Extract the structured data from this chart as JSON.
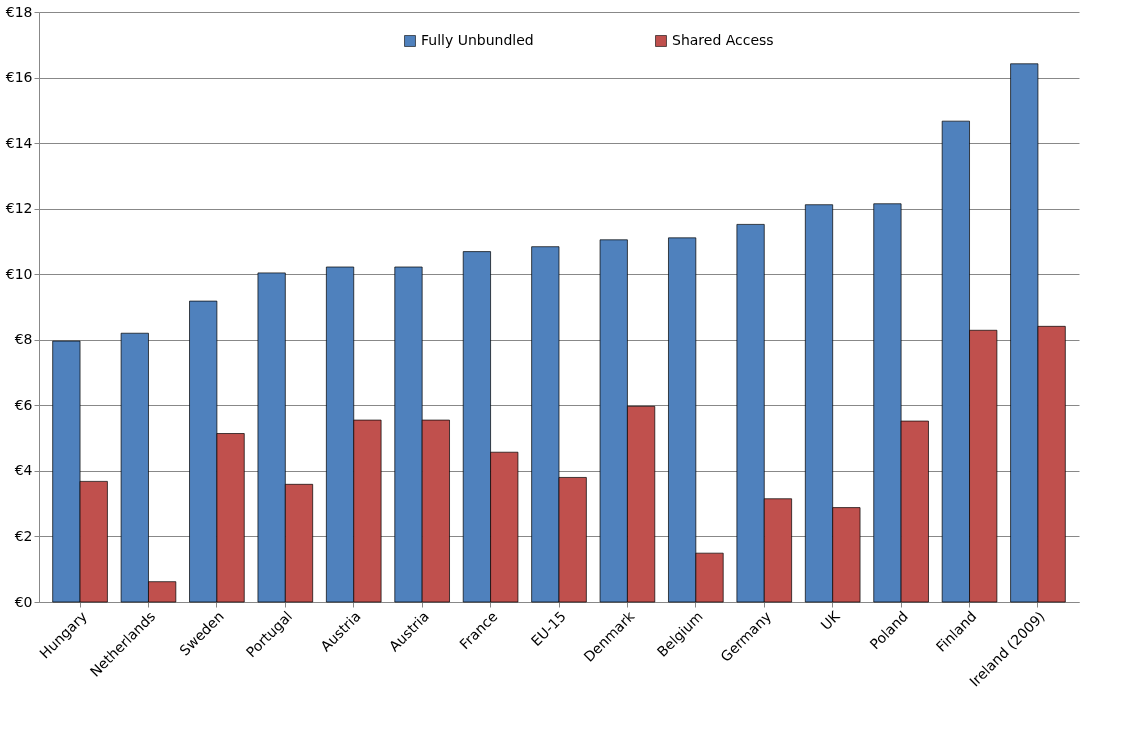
{
  "chart_data": {
    "type": "bar",
    "categories": [
      "Hungary",
      "Netherlands",
      "Sweden",
      "Portugal",
      "Austria",
      "Austria",
      "France",
      "EU-15",
      "Denmark",
      "Belgium",
      "Germany",
      "UK",
      "Poland",
      "Finland",
      "Ireland (2009)"
    ],
    "series": [
      {
        "name": "Fully Unbundled",
        "color": "#4f81bd",
        "values": [
          7.96,
          8.2,
          9.18,
          10.04,
          10.22,
          10.22,
          10.69,
          10.84,
          11.05,
          11.11,
          11.52,
          12.12,
          12.15,
          14.67,
          16.42
        ]
      },
      {
        "name": "Shared Access",
        "color": "#c0504d",
        "values": [
          3.68,
          0.62,
          5.14,
          3.59,
          5.55,
          5.55,
          4.57,
          3.8,
          5.97,
          1.49,
          3.15,
          2.88,
          5.52,
          8.29,
          8.41
        ]
      }
    ],
    "ylim": [
      0,
      18
    ],
    "yticks": [
      {
        "value": 0,
        "label": "€0"
      },
      {
        "value": 2,
        "label": "€2"
      },
      {
        "value": 4,
        "label": "€4"
      },
      {
        "value": 6,
        "label": "€6"
      },
      {
        "value": 8,
        "label": "€8"
      },
      {
        "value": 10,
        "label": "€10"
      },
      {
        "value": 12,
        "label": "€12"
      },
      {
        "value": 14,
        "label": "€14"
      },
      {
        "value": 16,
        "label": "€16"
      },
      {
        "value": 18,
        "label": "€18"
      }
    ],
    "grid": "y",
    "legend": "top"
  }
}
